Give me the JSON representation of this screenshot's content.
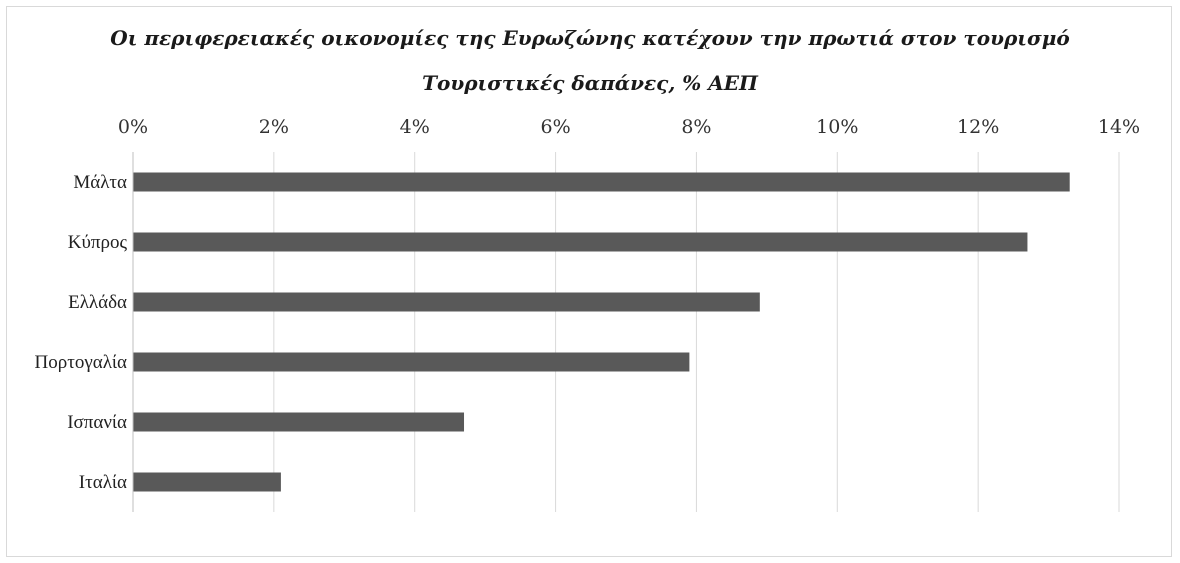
{
  "chart_data": {
    "type": "bar",
    "orientation": "horizontal",
    "title": "Οι περιφερειακές οικονομίες της Ευρωζώνης κατέχουν την πρωτιά στον τουρισμό",
    "subtitle": "Τουριστικές δαπάνες, % ΑΕΠ",
    "categories": [
      "Μάλτα",
      "Κύπρος",
      "Ελλάδα",
      "Πορτογαλία",
      "Ισπανία",
      "Ιταλία"
    ],
    "values": [
      13.3,
      12.7,
      8.9,
      7.9,
      4.7,
      2.1
    ],
    "xlim": [
      0,
      14
    ],
    "x_ticks": [
      0,
      2,
      4,
      6,
      8,
      10,
      12,
      14
    ],
    "x_tick_labels": [
      "0%",
      "2%",
      "4%",
      "6%",
      "8%",
      "10%",
      "12%",
      "14%"
    ],
    "x_axis_position": "top",
    "grid": true,
    "legend": "none",
    "bar_color": "#595959",
    "grid_color": "#d9d9d9"
  }
}
